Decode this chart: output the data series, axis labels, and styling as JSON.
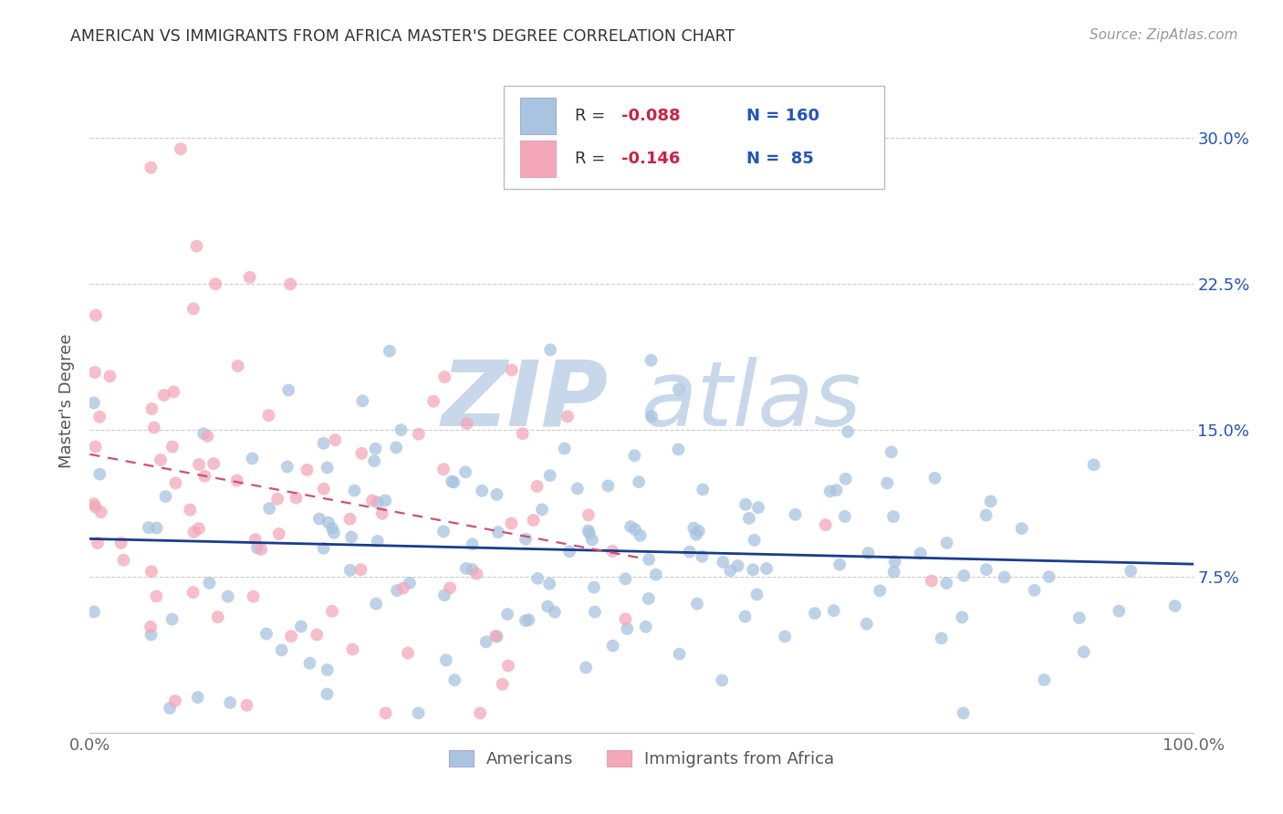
{
  "title": "AMERICAN VS IMMIGRANTS FROM AFRICA MASTER'S DEGREE CORRELATION CHART",
  "source": "Source: ZipAtlas.com",
  "ylabel": "Master's Degree",
  "ytick_labels": [
    "7.5%",
    "15.0%",
    "22.5%",
    "30.0%"
  ],
  "ytick_values": [
    0.075,
    0.15,
    0.225,
    0.3
  ],
  "legend_label1": "Americans",
  "legend_label2": "Immigrants from Africa",
  "color_americans": "#a8c4e0",
  "color_africa": "#f4a7b9",
  "color_line_americans": "#1a3c8c",
  "color_line_africa": "#d05070",
  "background_color": "#ffffff",
  "watermark_color": "#c8d8ea",
  "xlim": [
    0.0,
    1.0
  ],
  "ylim": [
    -0.005,
    0.335
  ],
  "R1": -0.088,
  "N1": 160,
  "R2": -0.146,
  "N2": 85,
  "seed1": 42,
  "seed2": 7
}
